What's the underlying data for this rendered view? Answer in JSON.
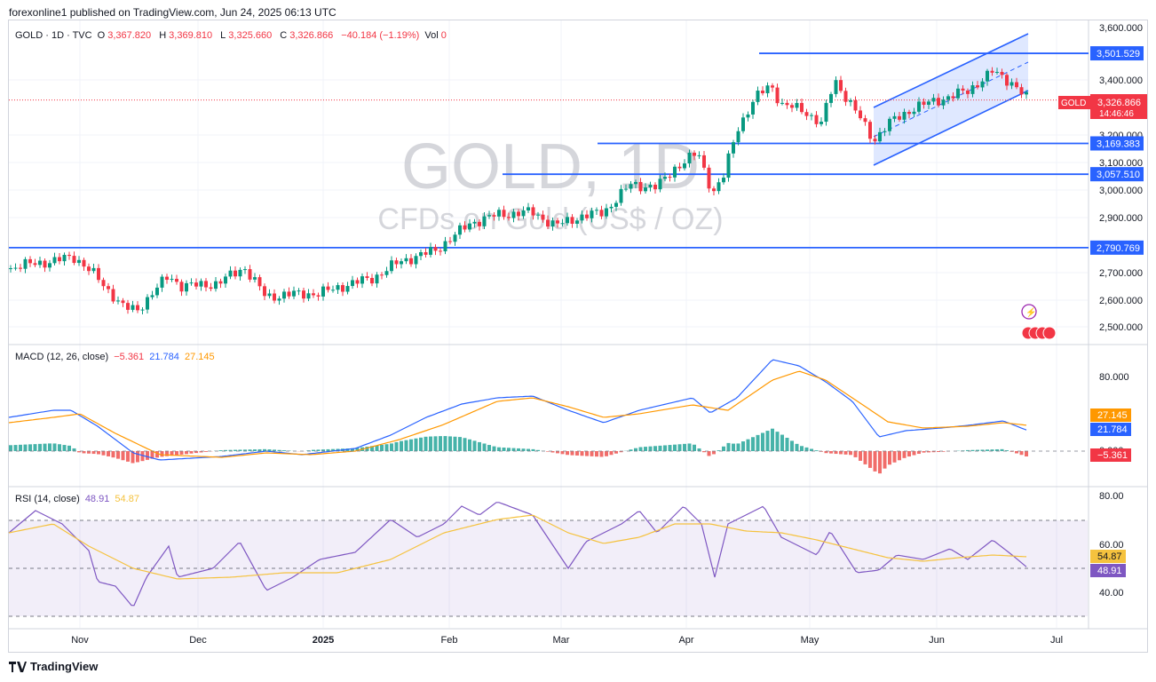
{
  "header": {
    "published": "forexonline1 published on TradingView.com, Jun 24, 2025 06:13 UTC"
  },
  "footer": {
    "brand": "TradingView"
  },
  "legend": {
    "symbol": "GOLD · 1D · TVC",
    "open_label": "O",
    "open": "3,367.820",
    "high_label": "H",
    "high": "3,369.810",
    "low_label": "L",
    "low": "3,325.660",
    "close_label": "C",
    "close": "3,326.866",
    "change": "−40.184 (−1.19%)",
    "vol_label": "Vol",
    "vol": "0"
  },
  "watermark": {
    "line1": "GOLD, 1D",
    "line2": "CFDs on Gold (US$ / OZ)"
  },
  "price_panel": {
    "ticks": [
      "3,600.000",
      "3,400.000",
      "3,200.000",
      "3,100.000",
      "3,000.000",
      "2,900.000",
      "2,700.000",
      "2,600.000",
      "2,500.000"
    ],
    "tick_values": [
      3600,
      3400,
      3200,
      3100,
      3000,
      2900,
      2700,
      2600,
      2500
    ],
    "levels": [
      {
        "label": "3,501.529",
        "value": 3501.529
      },
      {
        "label": "3,169.383",
        "value": 3169.383
      },
      {
        "label": "3,057.510",
        "value": 3057.51
      },
      {
        "label": "2,790.769",
        "value": 2790.769
      }
    ],
    "current": {
      "label": "3,326.866",
      "symbol": "GOLD",
      "countdown": "14:46:46",
      "value": 3326.866
    }
  },
  "macd": {
    "title": "MACD (12, 26, close)",
    "hist": "−5.361",
    "macd": "21.784",
    "signal": "27.145",
    "ticks": [
      "80.000",
      "0.000"
    ],
    "labels": {
      "signal": "27.145",
      "macd": "21.784",
      "hist": "−5.361"
    }
  },
  "rsi": {
    "title": "RSI (14, close)",
    "rsi": "48.91",
    "ma": "54.87",
    "ticks": [
      "80.00",
      "60.00",
      "40.00"
    ],
    "labels": {
      "ma": "54.87",
      "rsi": "48.91"
    }
  },
  "x_axis": {
    "labels": [
      "Nov",
      "Dec",
      "2025",
      "Feb",
      "Mar",
      "Apr",
      "May",
      "Jun",
      "Jul"
    ]
  },
  "colors": {
    "up": "#089981",
    "down": "#f23645",
    "line": "#2962ff",
    "macd": "#2962ff",
    "signal": "#ff9800",
    "rsi": "#7e57c2",
    "rsi_ma": "#f5c23e"
  },
  "chart_data": {
    "type": "candlestick",
    "title": "GOLD, 1D",
    "ylim": [
      2450,
      3620
    ],
    "key_closes": [
      {
        "x": "2024-10-31",
        "y": 2745
      },
      {
        "x": "2024-11-14",
        "y": 2565
      },
      {
        "x": "2024-12-11",
        "y": 2716
      },
      {
        "x": "2024-12-31",
        "y": 2625
      },
      {
        "x": "2025-02-11",
        "y": 2900
      },
      {
        "x": "2025-02-28",
        "y": 2858
      },
      {
        "x": "2025-04-02",
        "y": 3135
      },
      {
        "x": "2025-04-08",
        "y": 2984
      },
      {
        "x": "2025-04-22",
        "y": 3385
      },
      {
        "x": "2025-05-14",
        "y": 3180
      },
      {
        "x": "2025-06-13",
        "y": 3432
      },
      {
        "x": "2025-06-24",
        "y": 3326.866
      }
    ],
    "horizontal_levels": [
      3501.529,
      3169.383,
      3057.51,
      2790.769
    ]
  }
}
